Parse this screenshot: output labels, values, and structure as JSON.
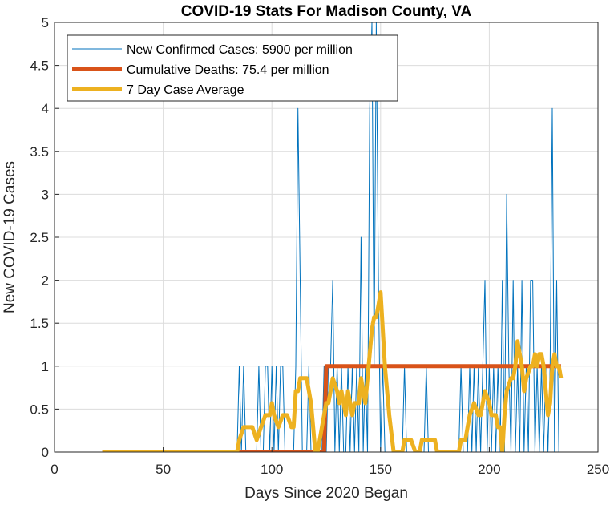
{
  "chart_data": {
    "type": "line",
    "title": "COVID-19 Stats For Madison County, VA",
    "xlabel": "Days Since 2020 Began",
    "ylabel": "New COVID-19 Cases",
    "xlim": [
      0,
      250
    ],
    "ylim": [
      0,
      5
    ],
    "xticks": [
      0,
      50,
      100,
      150,
      200,
      250
    ],
    "yticks": [
      0,
      0.5,
      1,
      1.5,
      2,
      2.5,
      3,
      3.5,
      4,
      4.5,
      5
    ],
    "grid": true,
    "legend_position": "top-left",
    "series": [
      {
        "name": "New Confirmed Cases: 5900 per million",
        "color": "#0072BD",
        "width": 1,
        "points": [
          [
            22,
            0
          ],
          [
            84,
            0
          ],
          [
            85,
            1
          ],
          [
            86,
            0
          ],
          [
            87,
            1
          ],
          [
            88,
            0
          ],
          [
            93,
            0
          ],
          [
            94,
            1
          ],
          [
            95,
            0
          ],
          [
            96,
            0
          ],
          [
            97,
            1
          ],
          [
            98,
            1
          ],
          [
            99,
            0
          ],
          [
            100,
            1
          ],
          [
            101,
            0
          ],
          [
            102,
            1
          ],
          [
            103,
            0
          ],
          [
            104,
            1
          ],
          [
            105,
            1
          ],
          [
            106,
            0
          ],
          [
            107,
            0
          ],
          [
            108,
            0
          ],
          [
            109,
            0
          ],
          [
            110,
            0
          ],
          [
            111,
            1
          ],
          [
            112,
            4
          ],
          [
            113,
            2
          ],
          [
            114,
            0
          ],
          [
            116,
            0
          ],
          [
            117,
            1
          ],
          [
            118,
            0
          ],
          [
            120,
            0
          ],
          [
            121,
            0
          ],
          [
            122,
            0
          ],
          [
            123,
            0
          ],
          [
            124,
            1
          ],
          [
            125,
            0
          ],
          [
            126,
            1
          ],
          [
            127,
            1
          ],
          [
            128,
            2
          ],
          [
            129,
            0
          ],
          [
            130,
            1
          ],
          [
            131,
            0
          ],
          [
            132,
            1
          ],
          [
            133,
            0
          ],
          [
            134,
            0
          ],
          [
            135,
            1
          ],
          [
            136,
            0
          ],
          [
            137,
            1
          ],
          [
            138,
            0
          ],
          [
            139,
            1
          ],
          [
            140,
            0
          ],
          [
            141,
            2.5
          ],
          [
            142,
            0
          ],
          [
            143,
            1
          ],
          [
            144,
            0
          ],
          [
            145,
            4
          ],
          [
            146,
            5
          ],
          [
            147,
            1
          ],
          [
            148,
            5
          ],
          [
            149,
            2
          ],
          [
            150,
            0
          ],
          [
            151,
            1
          ],
          [
            152,
            0
          ],
          [
            160,
            0
          ],
          [
            161,
            1
          ],
          [
            162,
            0
          ],
          [
            170,
            0
          ],
          [
            171,
            1
          ],
          [
            172,
            0
          ],
          [
            180,
            0
          ],
          [
            185,
            0
          ],
          [
            186,
            0
          ],
          [
            187,
            1
          ],
          [
            188,
            0
          ],
          [
            190,
            0
          ],
          [
            191,
            1
          ],
          [
            192,
            0
          ],
          [
            193,
            1
          ],
          [
            194,
            0
          ],
          [
            195,
            1
          ],
          [
            196,
            0
          ],
          [
            197,
            1
          ],
          [
            198,
            2
          ],
          [
            199,
            0
          ],
          [
            200,
            1
          ],
          [
            201,
            0
          ],
          [
            202,
            1
          ],
          [
            203,
            0
          ],
          [
            204,
            1
          ],
          [
            205,
            0
          ],
          [
            206,
            2
          ],
          [
            207,
            0
          ],
          [
            208,
            3
          ],
          [
            209,
            1
          ],
          [
            210,
            0
          ],
          [
            211,
            2
          ],
          [
            212,
            0
          ],
          [
            213,
            1
          ],
          [
            214,
            0
          ],
          [
            215,
            2
          ],
          [
            216,
            0
          ],
          [
            217,
            1
          ],
          [
            218,
            0
          ],
          [
            219,
            2
          ],
          [
            220,
            2
          ],
          [
            221,
            0
          ],
          [
            222,
            1
          ],
          [
            223,
            0
          ],
          [
            224,
            1
          ],
          [
            225,
            0
          ],
          [
            226,
            1
          ],
          [
            227,
            0
          ],
          [
            228,
            1
          ],
          [
            229,
            4
          ],
          [
            230,
            0
          ],
          [
            231,
            2
          ],
          [
            232,
            0
          ],
          [
            233,
            0
          ]
        ]
      },
      {
        "name": "Cumulative Deaths: 75.4 per million",
        "color": "#D95319",
        "width": 5,
        "points": [
          [
            22,
            0
          ],
          [
            124,
            0
          ],
          [
            125,
            1
          ],
          [
            233,
            1
          ]
        ]
      },
      {
        "name": "7 Day Case Average",
        "color": "#EDB120",
        "width": 5,
        "points": [
          [
            22,
            0
          ],
          [
            84,
            0
          ],
          [
            85,
            0.14
          ],
          [
            87,
            0.29
          ],
          [
            91,
            0.29
          ],
          [
            93,
            0.14
          ],
          [
            95,
            0.29
          ],
          [
            97,
            0.43
          ],
          [
            99,
            0.43
          ],
          [
            100,
            0.57
          ],
          [
            101,
            0.43
          ],
          [
            103,
            0.29
          ],
          [
            105,
            0.43
          ],
          [
            107,
            0.43
          ],
          [
            109,
            0.29
          ],
          [
            110,
            0.29
          ],
          [
            111,
            0.71
          ],
          [
            112,
            0.71
          ],
          [
            113,
            0.86
          ],
          [
            116,
            0.86
          ],
          [
            118,
            0.57
          ],
          [
            120,
            0
          ],
          [
            121,
            0
          ],
          [
            122,
            0.14
          ],
          [
            123,
            0.29
          ],
          [
            124,
            0.43
          ],
          [
            125,
            0.57
          ],
          [
            126,
            0.57
          ],
          [
            127,
            0.71
          ],
          [
            128,
            0.86
          ],
          [
            130,
            0.71
          ],
          [
            131,
            0.57
          ],
          [
            132,
            0.71
          ],
          [
            133,
            0.57
          ],
          [
            134,
            0.43
          ],
          [
            135,
            0.71
          ],
          [
            136,
            0.57
          ],
          [
            137,
            0.43
          ],
          [
            138,
            0.57
          ],
          [
            140,
            0.57
          ],
          [
            141,
            0.86
          ],
          [
            142,
            0.71
          ],
          [
            143,
            0.57
          ],
          [
            144,
            0.86
          ],
          [
            145,
            1.14
          ],
          [
            146,
            1.43
          ],
          [
            147,
            1.57
          ],
          [
            148,
            1.57
          ],
          [
            149,
            1.71
          ],
          [
            150,
            1.86
          ],
          [
            151,
            1.43
          ],
          [
            152,
            1.0
          ],
          [
            154,
            0.43
          ],
          [
            156,
            0
          ],
          [
            160,
            0
          ],
          [
            161,
            0.14
          ],
          [
            164,
            0.14
          ],
          [
            166,
            0
          ],
          [
            168,
            0
          ],
          [
            169,
            0.14
          ],
          [
            175,
            0.14
          ],
          [
            176,
            0
          ],
          [
            186,
            0
          ],
          [
            187,
            0.14
          ],
          [
            189,
            0.14
          ],
          [
            190,
            0.29
          ],
          [
            191,
            0.43
          ],
          [
            193,
            0.57
          ],
          [
            195,
            0.43
          ],
          [
            196,
            0.43
          ],
          [
            197,
            0.57
          ],
          [
            198,
            0.71
          ],
          [
            200,
            0.57
          ],
          [
            201,
            0.43
          ],
          [
            203,
            0.43
          ],
          [
            204,
            0.29
          ],
          [
            205,
            0.29
          ],
          [
            206,
            0
          ],
          [
            207,
            0.43
          ],
          [
            208,
            0.71
          ],
          [
            210,
            0.86
          ],
          [
            211,
            0.86
          ],
          [
            212,
            1.0
          ],
          [
            213,
            1.29
          ],
          [
            214,
            1.14
          ],
          [
            215,
            1.0
          ],
          [
            216,
            0.71
          ],
          [
            217,
            0.86
          ],
          [
            219,
            1.0
          ],
          [
            220,
            1.0
          ],
          [
            221,
            1.14
          ],
          [
            222,
            1.0
          ],
          [
            223,
            1.14
          ],
          [
            224,
            1.14
          ],
          [
            225,
            1.0
          ],
          [
            226,
            0.71
          ],
          [
            227,
            0.43
          ],
          [
            228,
            0.57
          ],
          [
            229,
            1.0
          ],
          [
            230,
            1.14
          ],
          [
            231,
            1.0
          ],
          [
            232,
            1.0
          ],
          [
            233,
            0.86
          ]
        ]
      }
    ]
  }
}
